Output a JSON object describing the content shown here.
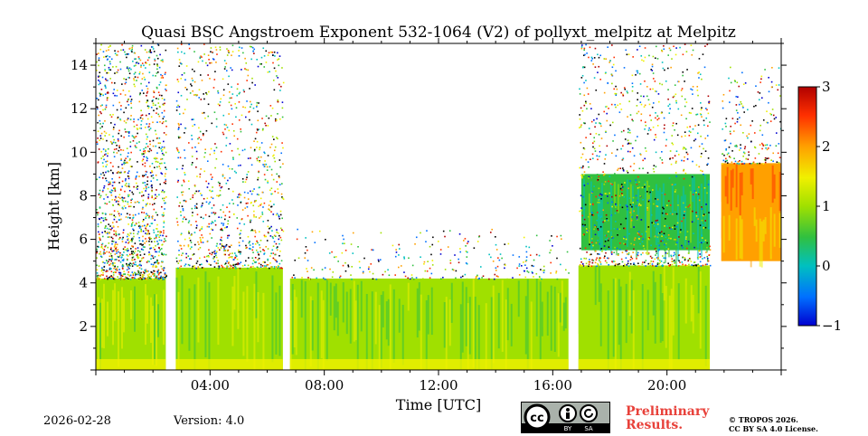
{
  "chart_data": {
    "type": "heatmap",
    "title": "Quasi BSC Angstroem Exponent 532-1064 (V2) of pollyxt_melpitz at Melpitz",
    "xlabel": "Time [UTC]",
    "ylabel": "Height [km]",
    "xlim_hours": [
      0,
      24
    ],
    "ylim_km": [
      0,
      15
    ],
    "x_ticks": [
      {
        "hour": 4,
        "label": "04:00"
      },
      {
        "hour": 8,
        "label": "08:00"
      },
      {
        "hour": 12,
        "label": "12:00"
      },
      {
        "hour": 16,
        "label": "16:00"
      },
      {
        "hour": 20,
        "label": "20:00"
      }
    ],
    "y_ticks": [
      {
        "km": 2,
        "label": "2"
      },
      {
        "km": 4,
        "label": "4"
      },
      {
        "km": 6,
        "label": "6"
      },
      {
        "km": 8,
        "label": "8"
      },
      {
        "km": 10,
        "label": "10"
      },
      {
        "km": 12,
        "label": "12"
      },
      {
        "km": 14,
        "label": "14"
      }
    ],
    "colorbar": {
      "range": [
        -1,
        3
      ],
      "ticks": [
        {
          "value": 3,
          "label": "3"
        },
        {
          "value": 2,
          "label": "2"
        },
        {
          "value": 1,
          "label": "1"
        },
        {
          "value": 0,
          "label": "0"
        },
        {
          "value": -1,
          "label": "−1"
        }
      ],
      "colors": [
        "#0000d0",
        "#0070ff",
        "#00c0c0",
        "#30c040",
        "#a0e000",
        "#f0f000",
        "#ffa000",
        "#ff3000",
        "#b00000"
      ]
    },
    "data_gaps_hours": [
      [
        2.45,
        2.8
      ],
      [
        6.55,
        6.8
      ],
      [
        16.55,
        16.9
      ],
      [
        21.5,
        21.9
      ]
    ],
    "regions": [
      {
        "t": [
          0,
          2.45
        ],
        "h": [
          0,
          4.2
        ],
        "value": 1.0
      },
      {
        "t": [
          2.8,
          6.55
        ],
        "h": [
          0,
          4.7
        ],
        "value": 1.0
      },
      {
        "t": [
          6.8,
          16.55
        ],
        "h": [
          0,
          4.2
        ],
        "value": 0.9
      },
      {
        "t": [
          16.9,
          21.5
        ],
        "h": [
          0,
          4.8
        ],
        "value": 1.0
      },
      {
        "t": [
          17.0,
          21.5
        ],
        "h": [
          5.5,
          9.0
        ],
        "value": 0.4
      },
      {
        "t": [
          21.9,
          24
        ],
        "h": [
          5.0,
          7.5
        ],
        "value": 1.8
      },
      {
        "t": [
          21.9,
          24
        ],
        "h": [
          7.5,
          9.5
        ],
        "value": 2.2
      }
    ]
  },
  "footer": {
    "date": "2026-02-28",
    "version": "Version: 4.0",
    "prelim_line1": "Preliminary",
    "prelim_line2": "Results.",
    "copyright_line1": "© TROPOS 2026.",
    "copyright_line2": "CC BY SA 4.0 License.",
    "cc_by": "BY",
    "cc_sa": "SA"
  }
}
